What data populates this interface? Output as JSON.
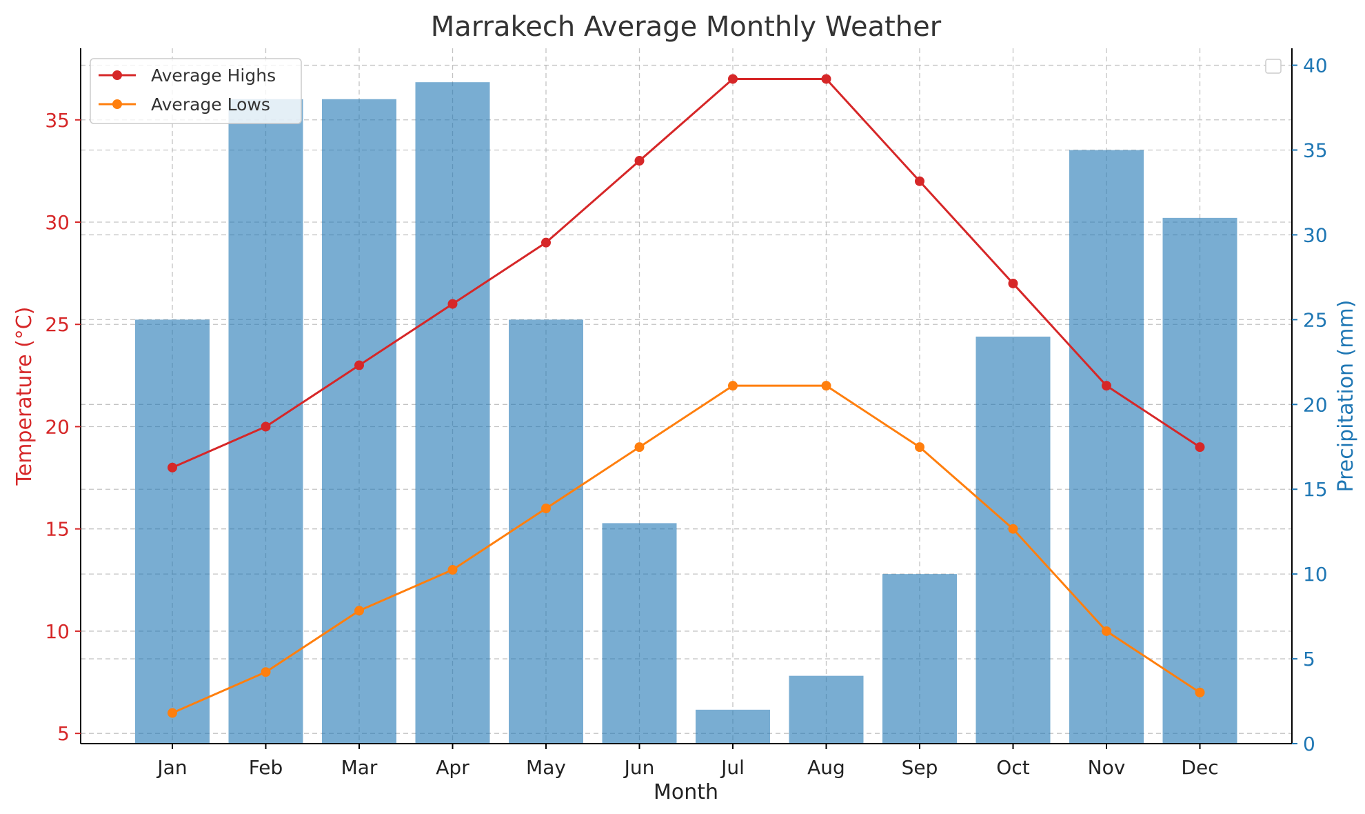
{
  "chart_data": {
    "type": "bar+line",
    "title": "Marrakech Average Monthly Weather",
    "xlabel": "Month",
    "categories": [
      "Jan",
      "Feb",
      "Mar",
      "Apr",
      "May",
      "Jun",
      "Jul",
      "Aug",
      "Sep",
      "Oct",
      "Nov",
      "Dec"
    ],
    "left_axis": {
      "label": "Temperature (°C)",
      "ylim": [
        4.5,
        38.5
      ],
      "ticks": [
        5,
        10,
        15,
        20,
        25,
        30,
        35
      ],
      "color": "#d62728"
    },
    "right_axis": {
      "label": "Precipitation (mm)",
      "ylim": [
        0,
        41
      ],
      "ticks": [
        0,
        5,
        10,
        15,
        20,
        25,
        30,
        35,
        40
      ],
      "color": "#1f77b4"
    },
    "series": [
      {
        "name": "Average Highs",
        "type": "line",
        "axis": "left",
        "color": "#d62728",
        "values": [
          18,
          20,
          23,
          26,
          29,
          33,
          37,
          37,
          32,
          27,
          22,
          19
        ]
      },
      {
        "name": "Average Lows",
        "type": "line",
        "axis": "left",
        "color": "#ff7f0e",
        "values": [
          6,
          8,
          11,
          13,
          16,
          19,
          22,
          22,
          19,
          15,
          10,
          7
        ]
      },
      {
        "type": "bar",
        "axis": "right",
        "color": "#1f77b4",
        "values": [
          25,
          38,
          38,
          39,
          25,
          13,
          2,
          4,
          10,
          24,
          35,
          31
        ]
      }
    ],
    "grid": true,
    "legend_placement": "top-left"
  }
}
